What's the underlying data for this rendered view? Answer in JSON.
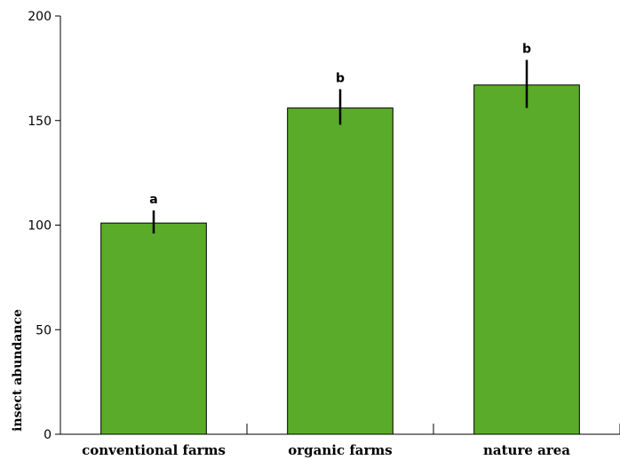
{
  "chart_data": {
    "type": "bar",
    "title": "",
    "xlabel": "",
    "ylabel": "insect abundance",
    "ylim": [
      0,
      200
    ],
    "yticks": [
      0,
      50,
      100,
      150,
      200
    ],
    "grid": false,
    "categories": [
      "conventional farms",
      "organic farms",
      "nature area"
    ],
    "values": [
      101,
      156,
      167
    ],
    "error_low": [
      96,
      148,
      156
    ],
    "error_high": [
      107,
      165,
      179
    ],
    "significance_letters": [
      "a",
      "b",
      "b"
    ],
    "bar_color": "#5aab2a",
    "bar_edge_color": "#000000"
  }
}
